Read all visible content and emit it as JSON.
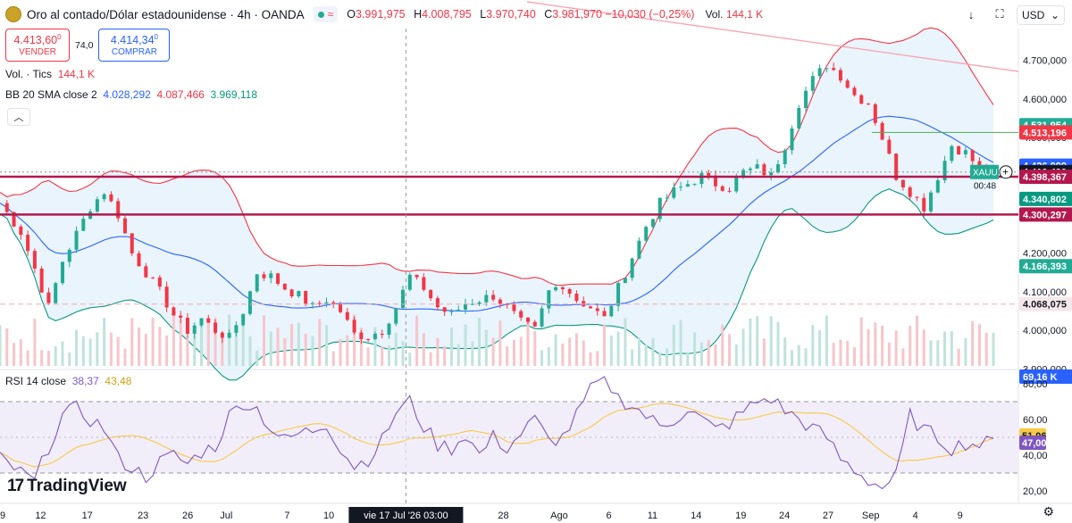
{
  "header": {
    "symbol_title": "Oro al contado/Dólar estadounidense · 4h · OANDA",
    "wave_icon": "≈",
    "ohlc": [
      {
        "k": "O",
        "v": "3.991,975"
      },
      {
        "k": "H",
        "v": "4.008,795"
      },
      {
        "k": "L",
        "v": "3.970,740"
      },
      {
        "k": "C",
        "v": "3.981,970 −10,030 (−0,25%)"
      }
    ],
    "vol_label": "Vol.",
    "vol_value": "144,1 K",
    "currency": "USD",
    "currency_chevron": "⌄",
    "icons": [
      "download-arrow-icon",
      "fullscreen-icon"
    ],
    "download_glyph": "↓",
    "fullscreen_glyph": "⛶"
  },
  "trade": {
    "sell_price": "4.413,60",
    "sell_sup": "0",
    "sell_label": "VENDER",
    "spread": "74,0",
    "buy_price": "4.414,34",
    "buy_sup": "0",
    "buy_label": "COMPRAR"
  },
  "volume_legend": {
    "name": "Vol. · Tics",
    "value": "144,1 K"
  },
  "bb_legend": {
    "name": "BB 20 SMA close 2",
    "basis": "4.028,292",
    "upper": "4.087,466",
    "lower": "3.969,118"
  },
  "rsi_legend": {
    "name": "RSI 14 close",
    "rsi": "38,37",
    "ma": "43,48"
  },
  "logo_text": "TradingView",
  "collapse_glyph": "︿",
  "gear_glyph": "⚙",
  "colors": {
    "up": "#22ab94",
    "down": "#f23645",
    "bb_upper": "#f23645",
    "bb_basis": "#2962ff",
    "bb_lower": "#089981",
    "rsi": "#7e57c2",
    "rsi_ma": "#f7c948",
    "level": "#b2184d"
  },
  "chart_data": {
    "type": "candlestick",
    "price_axis": {
      "ticks": [
        "4.700,000",
        "4.600,000",
        "4.500,000",
        "4.400,000",
        "4.300,000",
        "4.200,000",
        "4.100,000",
        "4.000,000",
        "3.900,000"
      ],
      "ylim": [
        3880,
        4750
      ],
      "labels": [
        {
          "text": "4.531,954",
          "value": 4531.954,
          "color": "#22ab94"
        },
        {
          "text": "4.513,196",
          "value": 4513.196,
          "color": "#f23645"
        },
        {
          "text": "4.426,999",
          "value": 4426.999,
          "color": "#2962ff"
        },
        {
          "text": "4.410,490",
          "value": 4410.49,
          "color": "#131722"
        },
        {
          "text": "4.398,367",
          "value": 4398.367,
          "color": "#b2184d"
        },
        {
          "text": "4.340,802",
          "value": 4340.802,
          "color": "#089981"
        },
        {
          "text": "4.300,297",
          "value": 4300.297,
          "color": "#b2184d"
        },
        {
          "text": "4.166,393",
          "value": 4166.393,
          "color": "#22ab94"
        },
        {
          "text": "4.068,075",
          "value": 4068.075,
          "color": "#f6e8ea",
          "text_color": "#131722"
        },
        {
          "text": "69,16 K",
          "value": 3880,
          "color": "#2962ff"
        }
      ],
      "symbol_tag": "XAUU",
      "countdown": "00:48"
    },
    "levels": [
      4398.4,
      4300.3
    ],
    "dashed_level": 4068.1,
    "trendline": {
      "from": {
        "x": "Ago 6",
        "y": 4790
      },
      "to": {
        "x": "Sep 4",
        "y": 4625
      }
    },
    "target_line": {
      "from": "Sep 1",
      "value": 4513.2
    },
    "price_path": [
      [
        0,
        4330
      ],
      [
        3,
        4255
      ],
      [
        5,
        4160
      ],
      [
        7,
        4060
      ],
      [
        9,
        4180
      ],
      [
        11,
        4250
      ],
      [
        13,
        4320
      ],
      [
        15,
        4360
      ],
      [
        17,
        4300
      ],
      [
        19,
        4200
      ],
      [
        21,
        4150
      ],
      [
        23,
        4100
      ],
      [
        25,
        4040
      ],
      [
        27,
        4000
      ],
      [
        29,
        4030
      ],
      [
        31,
        4000
      ],
      [
        33,
        3980
      ],
      [
        35,
        4050
      ],
      [
        37,
        4150
      ],
      [
        39,
        4140
      ],
      [
        41,
        4110
      ],
      [
        43,
        4090
      ],
      [
        45,
        4060
      ],
      [
        47,
        4080
      ],
      [
        49,
        4050
      ],
      [
        51,
        3990
      ],
      [
        53,
        3985
      ],
      [
        55,
        4000
      ],
      [
        57,
        4060
      ],
      [
        59,
        4140
      ],
      [
        61,
        4110
      ],
      [
        63,
        4060
      ],
      [
        65,
        4040
      ],
      [
        67,
        4070
      ],
      [
        69,
        4080
      ],
      [
        71,
        4090
      ],
      [
        73,
        4060
      ],
      [
        75,
        4020
      ],
      [
        77,
        4000
      ],
      [
        79,
        4100
      ],
      [
        81,
        4120
      ],
      [
        83,
        4080
      ],
      [
        85,
        4060
      ],
      [
        87,
        4030
      ],
      [
        89,
        4110
      ],
      [
        91,
        4190
      ],
      [
        93,
        4270
      ],
      [
        95,
        4330
      ],
      [
        97,
        4360
      ],
      [
        99,
        4380
      ],
      [
        101,
        4400
      ],
      [
        103,
        4380
      ],
      [
        105,
        4370
      ],
      [
        107,
        4410
      ],
      [
        109,
        4420
      ],
      [
        111,
        4400
      ],
      [
        113,
        4480
      ],
      [
        115,
        4590
      ],
      [
        117,
        4650
      ],
      [
        119,
        4690
      ],
      [
        121,
        4660
      ],
      [
        123,
        4610
      ],
      [
        125,
        4590
      ],
      [
        127,
        4500
      ],
      [
        129,
        4400
      ],
      [
        131,
        4360
      ],
      [
        133,
        4320
      ],
      [
        135,
        4400
      ],
      [
        137,
        4480
      ],
      [
        139,
        4460
      ],
      [
        141,
        4420
      ],
      [
        143,
        4410
      ]
    ],
    "volume_label": "Vol. · Tics",
    "rsi": {
      "ticks": [
        "80,00",
        "60,00",
        "40,00",
        "20,00"
      ],
      "ylim": [
        15,
        85
      ],
      "band": [
        30,
        70
      ],
      "mid": 50,
      "current_rsi": 47.0,
      "current_rsi_label": "47,00",
      "current_ma": 51.06,
      "current_ma_label": "51,06",
      "rsi_path": [
        [
          0,
          38
        ],
        [
          3,
          30
        ],
        [
          5,
          25
        ],
        [
          7,
          45
        ],
        [
          9,
          62
        ],
        [
          11,
          66
        ],
        [
          13,
          60
        ],
        [
          15,
          55
        ],
        [
          17,
          38
        ],
        [
          19,
          33
        ],
        [
          21,
          28
        ],
        [
          23,
          36
        ],
        [
          25,
          40
        ],
        [
          27,
          35
        ],
        [
          29,
          42
        ],
        [
          31,
          45
        ],
        [
          33,
          62
        ],
        [
          35,
          70
        ],
        [
          37,
          66
        ],
        [
          39,
          55
        ],
        [
          41,
          48
        ],
        [
          43,
          52
        ],
        [
          45,
          54
        ],
        [
          47,
          58
        ],
        [
          49,
          44
        ],
        [
          51,
          34
        ],
        [
          53,
          38
        ],
        [
          55,
          48
        ],
        [
          57,
          64
        ],
        [
          59,
          70
        ],
        [
          61,
          56
        ],
        [
          63,
          46
        ],
        [
          65,
          44
        ],
        [
          67,
          52
        ],
        [
          69,
          40
        ],
        [
          71,
          50
        ],
        [
          73,
          44
        ],
        [
          75,
          52
        ],
        [
          77,
          60
        ],
        [
          79,
          48
        ],
        [
          81,
          50
        ],
        [
          83,
          62
        ],
        [
          85,
          76
        ],
        [
          87,
          84
        ],
        [
          89,
          72
        ],
        [
          91,
          68
        ],
        [
          93,
          62
        ],
        [
          95,
          56
        ],
        [
          97,
          60
        ],
        [
          99,
          66
        ],
        [
          101,
          60
        ],
        [
          103,
          54
        ],
        [
          105,
          58
        ],
        [
          107,
          64
        ],
        [
          109,
          70
        ],
        [
          111,
          72
        ],
        [
          113,
          65
        ],
        [
          115,
          60
        ],
        [
          117,
          55
        ],
        [
          119,
          50
        ],
        [
          121,
          38
        ],
        [
          123,
          32
        ],
        [
          125,
          26
        ],
        [
          127,
          22
        ],
        [
          129,
          28
        ],
        [
          131,
          62
        ],
        [
          133,
          54
        ],
        [
          135,
          50
        ],
        [
          137,
          44
        ],
        [
          139,
          47
        ],
        [
          141,
          46
        ],
        [
          143,
          47
        ]
      ]
    },
    "x_axis": {
      "ticks": [
        {
          "label": "19",
          "pos": 0
        },
        {
          "label": "12",
          "pos": 4
        },
        {
          "label": "17",
          "pos": 8.6
        },
        {
          "label": "23",
          "pos": 14.1
        },
        {
          "label": "26",
          "pos": 18.5
        },
        {
          "label": "Jul",
          "pos": 22.3
        },
        {
          "label": "7",
          "pos": 28.3
        },
        {
          "label": "10",
          "pos": 32.4
        },
        {
          "label": "23",
          "pos": 45.0
        },
        {
          "label": "28",
          "pos": 49.6
        },
        {
          "label": "Ago",
          "pos": 55.1
        },
        {
          "label": "6",
          "pos": 60.0
        },
        {
          "label": "11",
          "pos": 64.3
        },
        {
          "label": "14",
          "pos": 68.6
        },
        {
          "label": "19",
          "pos": 73.0
        },
        {
          "label": "24",
          "pos": 77.3
        },
        {
          "label": "27",
          "pos": 81.6
        },
        {
          "label": "Sep",
          "pos": 85.8
        },
        {
          "label": "4",
          "pos": 90.2
        },
        {
          "label": "9",
          "pos": 94.6
        }
      ],
      "cursor_label": "vie 17 Jul '26   03:00",
      "cursor_pos": 40.0
    }
  }
}
